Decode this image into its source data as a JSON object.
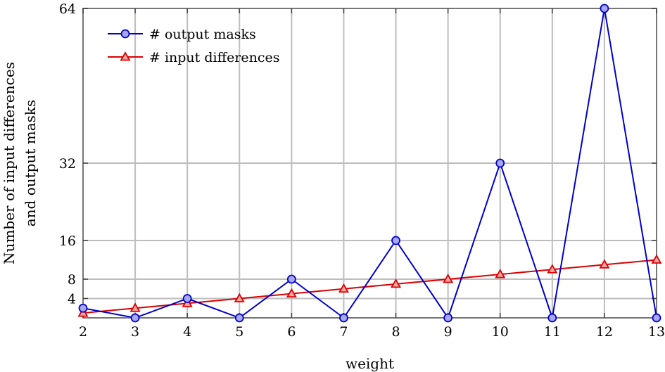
{
  "chart_data": {
    "type": "line",
    "xlabel": "weight",
    "ylabel": [
      "Number of input differences",
      "and output masks"
    ],
    "x": [
      2,
      3,
      4,
      5,
      6,
      7,
      8,
      9,
      10,
      11,
      12,
      13
    ],
    "xlim": [
      2,
      13
    ],
    "ylim": [
      0,
      64
    ],
    "yticks": [
      4,
      8,
      16,
      32,
      64
    ],
    "grid": true,
    "legend_position": "top-left",
    "series": [
      {
        "name": "# output masks",
        "color": "#0000cc",
        "marker": "circle",
        "values": [
          2,
          0,
          4,
          0,
          8,
          0,
          16,
          0,
          32,
          0,
          64,
          0
        ]
      },
      {
        "name": "# input differences",
        "color": "#dd0000",
        "marker": "triangle",
        "values": [
          1,
          2,
          3,
          4,
          5,
          6,
          7,
          8,
          9,
          10,
          11,
          12
        ]
      }
    ]
  }
}
